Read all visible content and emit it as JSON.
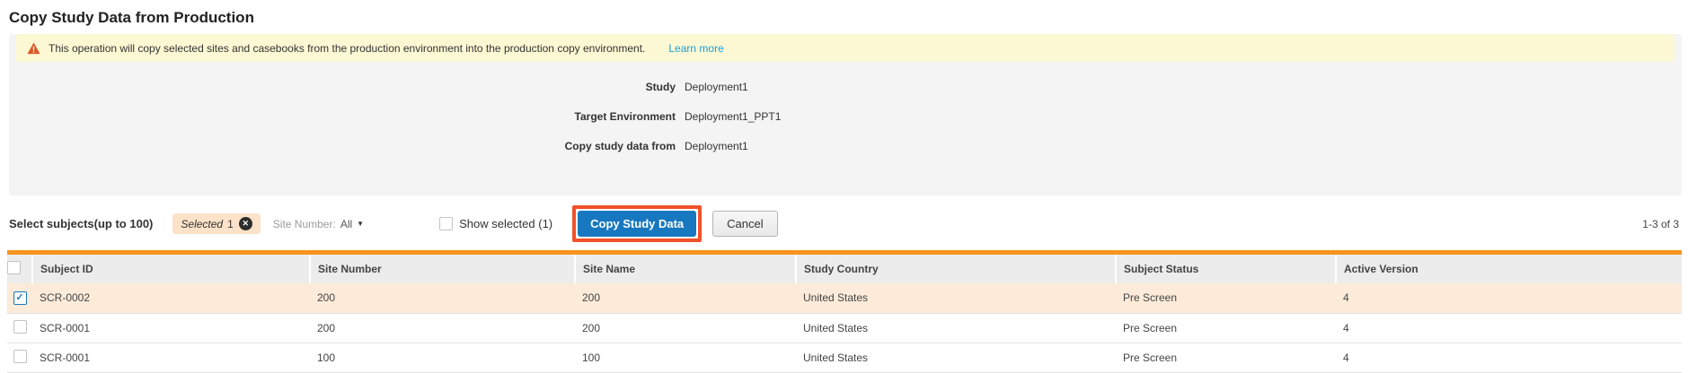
{
  "page": {
    "title": "Copy Study Data from Production"
  },
  "banner": {
    "warning_icon": "warning-triangle-icon",
    "text": "This operation will copy selected sites and casebooks from the production environment into the production copy environment.",
    "link": "Learn more"
  },
  "fields": [
    {
      "label": "Study",
      "value": "Deployment1"
    },
    {
      "label": "Target Environment",
      "value": "Deployment1_PPT1"
    },
    {
      "label": "Copy study data from",
      "value": "Deployment1"
    }
  ],
  "toolbar": {
    "select_label": "Select subjects(up to 100)",
    "selected_pill": {
      "word": "Selected",
      "count": "1",
      "clear_icon": "close-circle-icon"
    },
    "site_filter": {
      "label": "Site Number:",
      "value": "All",
      "caret_icon": "chevron-down-icon"
    },
    "show_selected_label": "Show selected (1)",
    "show_selected_checked": false,
    "copy_button": "Copy Study Data",
    "cancel_button": "Cancel",
    "pagination": "1-3 of 3"
  },
  "table": {
    "columns": [
      "Subject ID",
      "Site Number",
      "Site Name",
      "Study Country",
      "Subject Status",
      "Active Version"
    ],
    "rows": [
      {
        "checked": true,
        "cells": [
          "SCR-0002",
          "200",
          "200",
          "United States",
          "Pre Screen",
          "4"
        ]
      },
      {
        "checked": false,
        "cells": [
          "SCR-0001",
          "200",
          "200",
          "United States",
          "Pre Screen",
          "4"
        ]
      },
      {
        "checked": false,
        "cells": [
          "SCR-0001",
          "100",
          "100",
          "United States",
          "Pre Screen",
          "4"
        ]
      }
    ]
  },
  "colors": {
    "accent-blue": "#1878bf",
    "table-border-orange": "#f7941e",
    "annotation-orange": "#f1512a",
    "banner-yellow": "#fcf8d3",
    "panel-gray": "#f4f4f4",
    "selected-row": "#fcebd9",
    "pill-bg": "#fbe2c8",
    "link-blue": "#1a9ed9",
    "warning-icon": "#dd5724"
  }
}
